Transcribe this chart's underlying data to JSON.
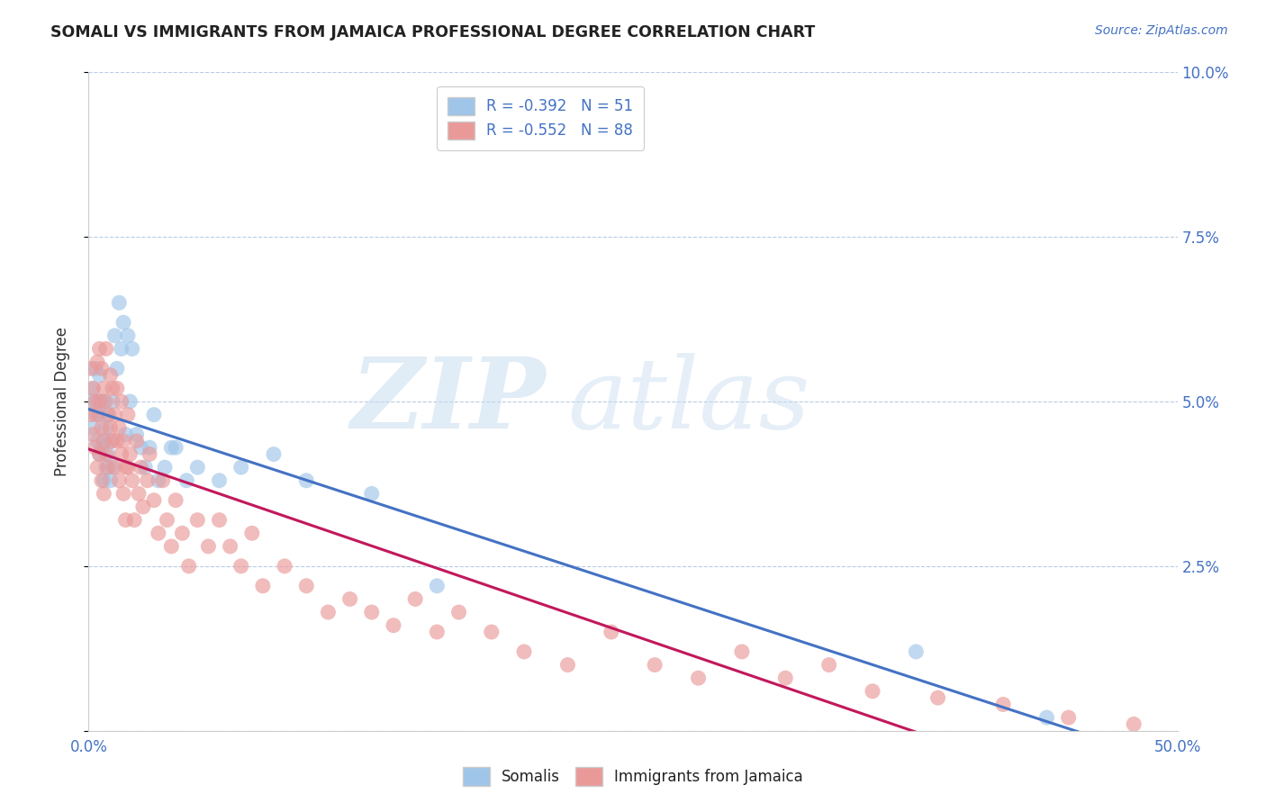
{
  "title": "SOMALI VS IMMIGRANTS FROM JAMAICA PROFESSIONAL DEGREE CORRELATION CHART",
  "source": "Source: ZipAtlas.com",
  "ylabel": "Professional Degree",
  "xlim": [
    0.0,
    0.5
  ],
  "ylim": [
    0.0,
    0.1
  ],
  "xticks": [
    0.0,
    0.1,
    0.2,
    0.3,
    0.4,
    0.5
  ],
  "yticks": [
    0.0,
    0.025,
    0.05,
    0.075,
    0.1
  ],
  "ytick_labels_right": [
    "",
    "2.5%",
    "5.0%",
    "7.5%",
    "10.0%"
  ],
  "xtick_labels": [
    "0.0%",
    "",
    "",
    "",
    "",
    "50.0%"
  ],
  "blue_color": "#9fc5e8",
  "pink_color": "#ea9999",
  "blue_line_color": "#4472c4",
  "pink_line_color": "#c2185b",
  "axis_color": "#4472c4",
  "grid_color": "#b8cce4",
  "background_color": "#ffffff",
  "legend_R1": "R = -0.392",
  "legend_N1": "N = 51",
  "legend_R2": "R = -0.552",
  "legend_N2": "N = 88",
  "somali_x": [
    0.001,
    0.002,
    0.002,
    0.003,
    0.003,
    0.004,
    0.004,
    0.005,
    0.005,
    0.005,
    0.006,
    0.006,
    0.007,
    0.007,
    0.007,
    0.008,
    0.008,
    0.009,
    0.009,
    0.01,
    0.01,
    0.011,
    0.011,
    0.012,
    0.013,
    0.014,
    0.015,
    0.016,
    0.017,
    0.018,
    0.019,
    0.02,
    0.022,
    0.024,
    0.026,
    0.028,
    0.03,
    0.032,
    0.035,
    0.038,
    0.04,
    0.045,
    0.05,
    0.06,
    0.07,
    0.085,
    0.1,
    0.13,
    0.16,
    0.38,
    0.44
  ],
  "somali_y": [
    0.05,
    0.052,
    0.046,
    0.048,
    0.055,
    0.044,
    0.05,
    0.042,
    0.048,
    0.054,
    0.043,
    0.05,
    0.038,
    0.044,
    0.05,
    0.04,
    0.046,
    0.042,
    0.048,
    0.038,
    0.044,
    0.04,
    0.05,
    0.06,
    0.055,
    0.065,
    0.058,
    0.062,
    0.045,
    0.06,
    0.05,
    0.058,
    0.045,
    0.043,
    0.04,
    0.043,
    0.048,
    0.038,
    0.04,
    0.043,
    0.043,
    0.038,
    0.04,
    0.038,
    0.04,
    0.042,
    0.038,
    0.036,
    0.022,
    0.012,
    0.002
  ],
  "jamaica_x": [
    0.001,
    0.001,
    0.002,
    0.002,
    0.003,
    0.003,
    0.004,
    0.004,
    0.004,
    0.005,
    0.005,
    0.005,
    0.006,
    0.006,
    0.006,
    0.007,
    0.007,
    0.007,
    0.008,
    0.008,
    0.008,
    0.009,
    0.009,
    0.01,
    0.01,
    0.011,
    0.011,
    0.012,
    0.012,
    0.013,
    0.013,
    0.014,
    0.014,
    0.015,
    0.015,
    0.016,
    0.016,
    0.017,
    0.017,
    0.018,
    0.018,
    0.019,
    0.02,
    0.021,
    0.022,
    0.023,
    0.024,
    0.025,
    0.027,
    0.028,
    0.03,
    0.032,
    0.034,
    0.036,
    0.038,
    0.04,
    0.043,
    0.046,
    0.05,
    0.055,
    0.06,
    0.065,
    0.07,
    0.075,
    0.08,
    0.09,
    0.1,
    0.11,
    0.12,
    0.13,
    0.14,
    0.15,
    0.16,
    0.17,
    0.185,
    0.2,
    0.22,
    0.24,
    0.26,
    0.28,
    0.3,
    0.32,
    0.34,
    0.36,
    0.39,
    0.42,
    0.45,
    0.48
  ],
  "jamaica_y": [
    0.055,
    0.048,
    0.052,
    0.045,
    0.05,
    0.043,
    0.056,
    0.048,
    0.04,
    0.058,
    0.05,
    0.042,
    0.055,
    0.046,
    0.038,
    0.052,
    0.044,
    0.036,
    0.05,
    0.042,
    0.058,
    0.048,
    0.04,
    0.054,
    0.046,
    0.052,
    0.044,
    0.048,
    0.04,
    0.044,
    0.052,
    0.046,
    0.038,
    0.05,
    0.042,
    0.044,
    0.036,
    0.04,
    0.032,
    0.048,
    0.04,
    0.042,
    0.038,
    0.032,
    0.044,
    0.036,
    0.04,
    0.034,
    0.038,
    0.042,
    0.035,
    0.03,
    0.038,
    0.032,
    0.028,
    0.035,
    0.03,
    0.025,
    0.032,
    0.028,
    0.032,
    0.028,
    0.025,
    0.03,
    0.022,
    0.025,
    0.022,
    0.018,
    0.02,
    0.018,
    0.016,
    0.02,
    0.015,
    0.018,
    0.015,
    0.012,
    0.01,
    0.015,
    0.01,
    0.008,
    0.012,
    0.008,
    0.01,
    0.006,
    0.005,
    0.004,
    0.002,
    0.001
  ]
}
